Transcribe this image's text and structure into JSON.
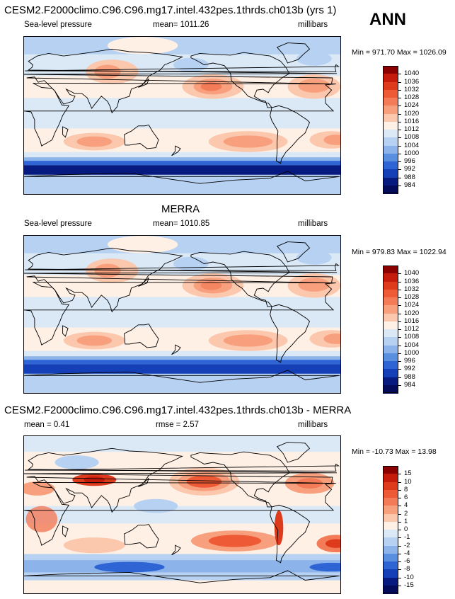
{
  "header": {
    "season": "ANN"
  },
  "panels": [
    {
      "id": "model",
      "title": "CESM2.F2000climo.C96.C96.mg17.intel.432pes.1thrds.ch013b (yrs 1)",
      "left_label": "Sea-level pressure",
      "center_label": "mean= 1011.26",
      "right_label": "millibars",
      "minmax": "Min = 971.70 Max = 1026.09",
      "levels": [
        "1040",
        "1036",
        "1032",
        "1028",
        "1024",
        "1020",
        "1016",
        "1012",
        "1008",
        "1004",
        "1000",
        "996",
        "992",
        "988",
        "984"
      ]
    },
    {
      "id": "obs",
      "title": "MERRA",
      "left_label": "Sea-level pressure",
      "center_label": "mean= 1010.85",
      "right_label": "millibars",
      "minmax": "Min = 979.83 Max = 1022.94",
      "levels": [
        "1040",
        "1036",
        "1032",
        "1028",
        "1024",
        "1020",
        "1016",
        "1012",
        "1008",
        "1004",
        "1000",
        "996",
        "992",
        "988",
        "984"
      ]
    },
    {
      "id": "diff",
      "title": "CESM2.F2000climo.C96.C96.mg17.intel.432pes.1thrds.ch013b - MERRA",
      "left_label": "mean =   0.41",
      "center_label": "rmse =   2.57",
      "right_label": "millibars",
      "minmax": "Min = -10.73 Max =  13.98",
      "levels": [
        "15",
        "10",
        "8",
        "6",
        "4",
        "2",
        "1",
        "0",
        "-1",
        "-2",
        "-4",
        "-6",
        "-8",
        "-10",
        "-15"
      ]
    }
  ],
  "colors": {
    "scale": [
      "#8b0000",
      "#c51b0d",
      "#de3b1c",
      "#ee5a36",
      "#f47b57",
      "#f8a07e",
      "#fbc7ad",
      "#fff0e6",
      "#dbe9f7",
      "#b6d1f2",
      "#8cb4ea",
      "#5a8fe0",
      "#2e64d4",
      "#143fb6",
      "#061a80",
      "#030b5a"
    ]
  }
}
